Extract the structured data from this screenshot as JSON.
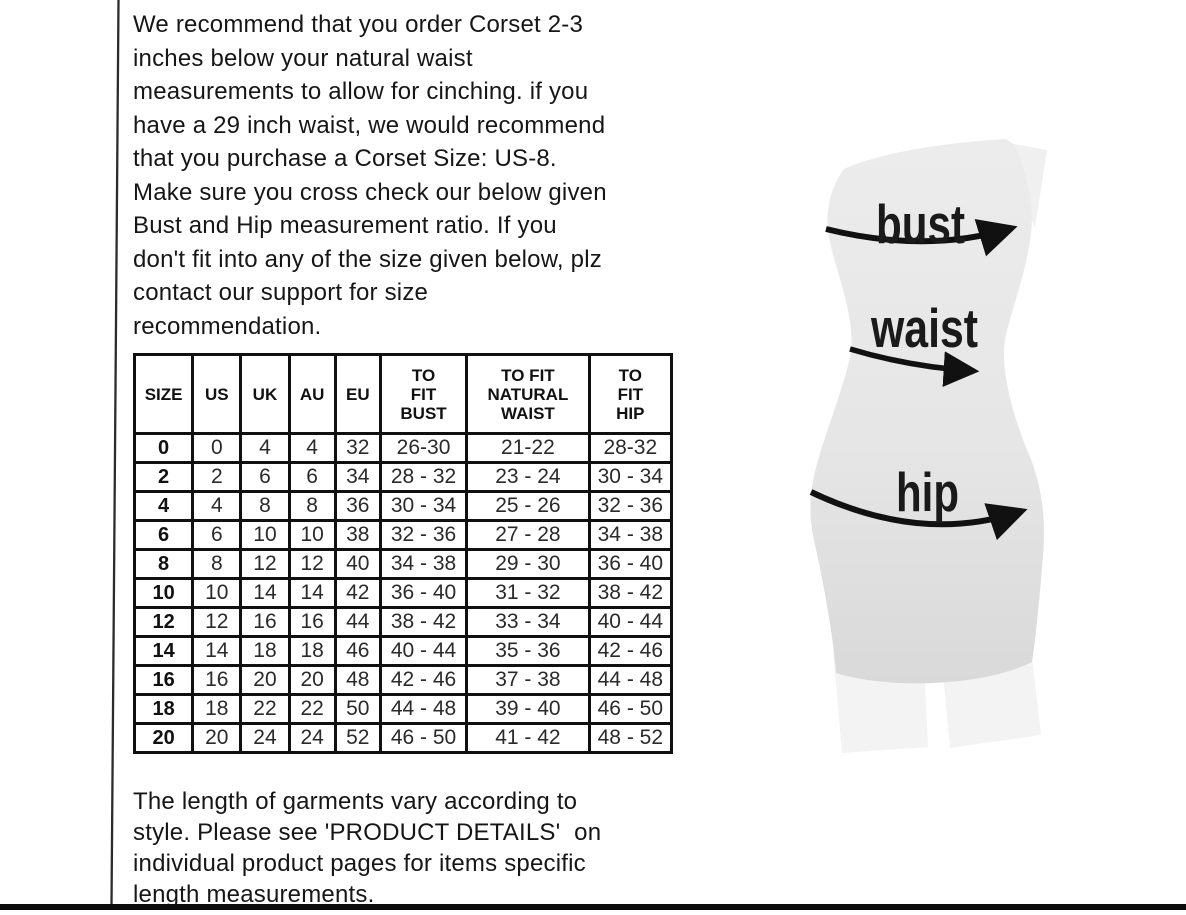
{
  "intro_paragraph": {
    "lines": [
      "We recommend that you order Corset 2-3",
      "inches below your natural waist",
      "measurements to allow for cinching. if you",
      "have a 29 inch waist, we would recommend",
      "that you purchase a Corset Size: US-8.",
      "Make sure you cross check our below given",
      "Bust and Hip measurement ratio. If you",
      "don't fit into any of the size given below, plz",
      "contact our support for size",
      "recommendation."
    ]
  },
  "size_table": {
    "headers": [
      "SIZE",
      "US",
      "UK",
      "AU",
      "EU",
      "TO\nFIT\nBUST",
      "TO FIT\nNATURAL\nWAIST",
      "TO\nFIT\nHIP"
    ],
    "rows": [
      [
        "0",
        "0",
        "4",
        "4",
        "32",
        "26-30",
        "21-22",
        "28-32"
      ],
      [
        "2",
        "2",
        "6",
        "6",
        "34",
        "28 - 32",
        "23 - 24",
        "30 - 34"
      ],
      [
        "4",
        "4",
        "8",
        "8",
        "36",
        "30 - 34",
        "25 - 26",
        "32 - 36"
      ],
      [
        "6",
        "6",
        "10",
        "10",
        "38",
        "32 - 36",
        "27 - 28",
        "34 - 38"
      ],
      [
        "8",
        "8",
        "12",
        "12",
        "40",
        "34 - 38",
        "29 - 30",
        "36 - 40"
      ],
      [
        "10",
        "10",
        "14",
        "14",
        "42",
        "36 - 40",
        "31 - 32",
        "38 - 42"
      ],
      [
        "12",
        "12",
        "16",
        "16",
        "44",
        "38 - 42",
        "33 - 34",
        "40 - 44"
      ],
      [
        "14",
        "14",
        "18",
        "18",
        "46",
        "40 - 44",
        "35 - 36",
        "42 - 46"
      ],
      [
        "16",
        "16",
        "20",
        "20",
        "48",
        "42 - 46",
        "37 - 38",
        "44 - 48"
      ],
      [
        "18",
        "18",
        "22",
        "22",
        "50",
        "44 - 48",
        "39 - 40",
        "46 - 50"
      ],
      [
        "20",
        "20",
        "24",
        "24",
        "52",
        "46 - 50",
        "41 - 42",
        "48 - 52"
      ]
    ]
  },
  "footer_paragraph": {
    "lines": [
      "The length of garments vary according to",
      "style. Please see 'PRODUCT DETAILS'  on",
      "individual product pages for items specific",
      "length measurements."
    ]
  },
  "figure": {
    "bust_label": "bust",
    "waist_label": "waist",
    "hip_label": "hip"
  },
  "colors": {
    "body_fill_top": "#ececec",
    "body_fill_bottom": "#d9d9d9",
    "legs_fill": "#f3f3f3",
    "arrow_color": "#111111",
    "border_color": "#101010"
  }
}
